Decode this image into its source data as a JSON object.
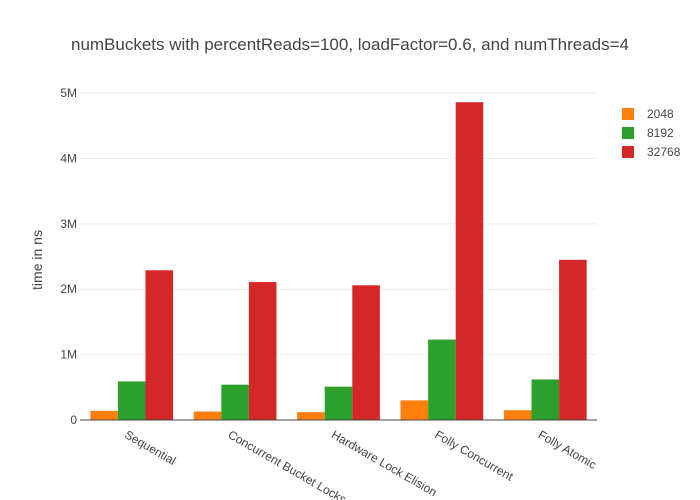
{
  "chart_data": {
    "type": "bar",
    "title": "numBuckets with percentReads=100, loadFactor=0.6, and numThreads=4",
    "xlabel": "",
    "ylabel": "time in ns",
    "categories": [
      "Sequential",
      "Concurrent Bucket Locks",
      "Hardware Lock Elision",
      "Folly Concurrent",
      "Folly Atomic"
    ],
    "series": [
      {
        "name": "2048",
        "color": "#ff7f0e",
        "values": [
          140000,
          130000,
          120000,
          300000,
          150000
        ]
      },
      {
        "name": "8192",
        "color": "#2ca02c",
        "values": [
          590000,
          540000,
          510000,
          1230000,
          620000
        ]
      },
      {
        "name": "32768",
        "color": "#d62728",
        "values": [
          2290000,
          2110000,
          2060000,
          4860000,
          2450000
        ]
      }
    ],
    "ylim": [
      0,
      5200000
    ],
    "yticks": [
      0,
      1000000,
      2000000,
      3000000,
      4000000,
      5000000
    ],
    "ytick_labels": [
      "0",
      "1M",
      "2M",
      "3M",
      "4M",
      "5M"
    ],
    "grid": true,
    "legend_position": "top-right"
  }
}
